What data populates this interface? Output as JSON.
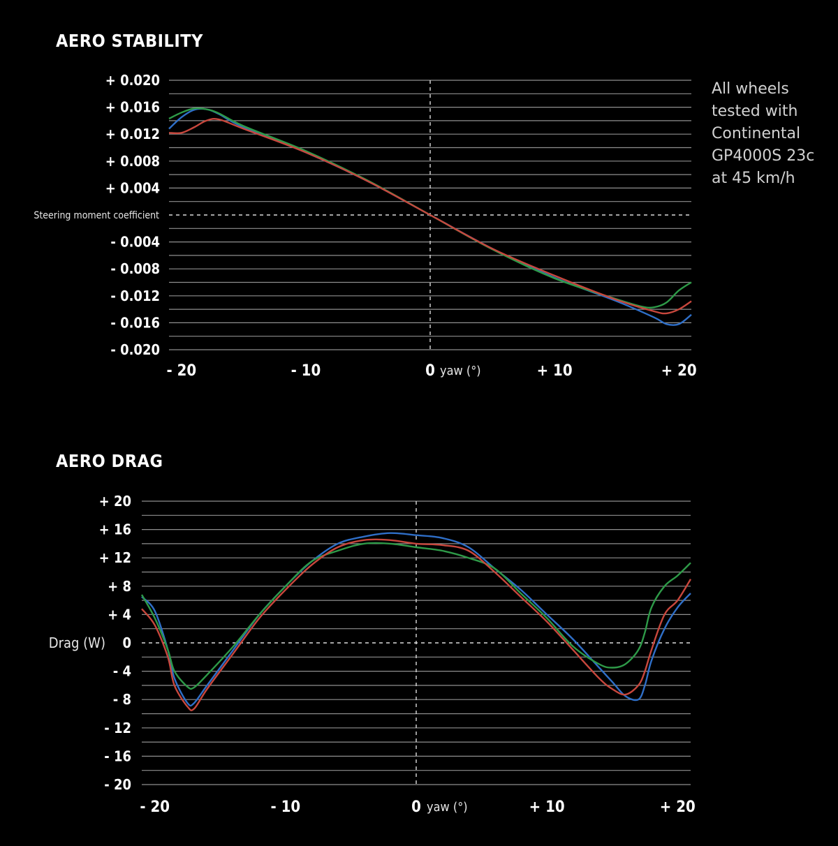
{
  "chart_data": [
    {
      "type": "line",
      "title": "AERO STABILITY",
      "ylabel": "Steering moment coefficient",
      "xlabel": "yaw (°)",
      "xlim": [
        -21,
        21
      ],
      "ylim": [
        -0.02,
        0.02
      ],
      "x_ticks": [
        {
          "value": -20,
          "label": "- 20"
        },
        {
          "value": -10,
          "label": "- 10"
        },
        {
          "value": 0,
          "label": "0"
        },
        {
          "value": 10,
          "label": "+ 10"
        },
        {
          "value": 20,
          "label": "+ 20"
        }
      ],
      "y_ticks": [
        {
          "value": 0.02,
          "label": "+ 0.020"
        },
        {
          "value": 0.016,
          "label": "+ 0.016"
        },
        {
          "value": 0.012,
          "label": "+ 0.012"
        },
        {
          "value": 0.008,
          "label": "+ 0.008"
        },
        {
          "value": 0.004,
          "label": "+ 0.004"
        },
        {
          "value": -0.004,
          "label": "- 0.004"
        },
        {
          "value": -0.008,
          "label": "- 0.008"
        },
        {
          "value": -0.012,
          "label": "- 0.012"
        },
        {
          "value": -0.016,
          "label": "- 0.016"
        },
        {
          "value": -0.02,
          "label": "- 0.020"
        }
      ],
      "grid": true,
      "series": [
        {
          "color": "#2f6fc8",
          "points": [
            [
              -21,
              0.0128
            ],
            [
              -20,
              0.0145
            ],
            [
              -19,
              0.0156
            ],
            [
              -18,
              0.0157
            ],
            [
              -17,
              0.015
            ],
            [
              -15,
              0.013
            ],
            [
              -10,
              0.0093
            ],
            [
              -5,
              0.005
            ],
            [
              0,
              0.0
            ],
            [
              5,
              -0.005
            ],
            [
              10,
              -0.0093
            ],
            [
              15,
              -0.0128
            ],
            [
              18,
              -0.0152
            ],
            [
              19,
              -0.0162
            ],
            [
              20,
              -0.0162
            ],
            [
              21,
              -0.0148
            ]
          ]
        },
        {
          "color": "#2e9a48",
          "points": [
            [
              -21,
              0.0143
            ],
            [
              -20,
              0.0152
            ],
            [
              -19,
              0.0158
            ],
            [
              -18,
              0.0157
            ],
            [
              -17,
              0.0151
            ],
            [
              -15,
              0.0132
            ],
            [
              -10,
              0.0095
            ],
            [
              -5,
              0.0051
            ],
            [
              0,
              0.0
            ],
            [
              5,
              -0.0051
            ],
            [
              10,
              -0.0094
            ],
            [
              15,
              -0.0125
            ],
            [
              17,
              -0.0136
            ],
            [
              18,
              -0.0137
            ],
            [
              19,
              -0.013
            ],
            [
              20,
              -0.0112
            ],
            [
              21,
              -0.01
            ]
          ]
        },
        {
          "color": "#c8473d",
          "points": [
            [
              -21,
              0.0122
            ],
            [
              -20,
              0.0122
            ],
            [
              -19,
              0.013
            ],
            [
              -18,
              0.014
            ],
            [
              -17,
              0.0142
            ],
            [
              -15,
              0.0128
            ],
            [
              -10,
              0.0093
            ],
            [
              -5,
              0.005
            ],
            [
              0,
              0.0
            ],
            [
              5,
              -0.005
            ],
            [
              10,
              -0.009
            ],
            [
              15,
              -0.0126
            ],
            [
              18,
              -0.0143
            ],
            [
              19,
              -0.0146
            ],
            [
              20,
              -0.014
            ],
            [
              21,
              -0.0128
            ]
          ]
        }
      ]
    },
    {
      "type": "line",
      "title": "AERO DRAG",
      "ylabel": "Drag (W)",
      "xlabel": "yaw (°)",
      "xlim": [
        -21,
        21
      ],
      "ylim": [
        -20,
        20
      ],
      "x_ticks": [
        {
          "value": -20,
          "label": "- 20"
        },
        {
          "value": -10,
          "label": "- 10"
        },
        {
          "value": 0,
          "label": "0"
        },
        {
          "value": 10,
          "label": "+ 10"
        },
        {
          "value": 20,
          "label": "+ 20"
        }
      ],
      "y_ticks": [
        {
          "value": 20,
          "label": "+ 20"
        },
        {
          "value": 16,
          "label": "+ 16"
        },
        {
          "value": 12,
          "label": "+ 12"
        },
        {
          "value": 8,
          "label": "+ 8"
        },
        {
          "value": 4,
          "label": "+ 4"
        },
        {
          "value": 0,
          "label": "0"
        },
        {
          "value": -4,
          "label": "- 4"
        },
        {
          "value": -8,
          "label": "- 8"
        },
        {
          "value": -12,
          "label": "- 12"
        },
        {
          "value": -16,
          "label": "- 16"
        },
        {
          "value": -20,
          "label": "- 20"
        }
      ],
      "grid": true,
      "series": [
        {
          "color": "#2f6fc8",
          "points": [
            [
              -21,
              6.5
            ],
            [
              -20,
              4.5
            ],
            [
              -19,
              -1
            ],
            [
              -18.5,
              -5
            ],
            [
              -17.5,
              -8.5
            ],
            [
              -17,
              -8.5
            ],
            [
              -16,
              -6
            ],
            [
              -14,
              -1
            ],
            [
              -12,
              4
            ],
            [
              -10,
              8
            ],
            [
              -8,
              11.5
            ],
            [
              -6,
              14
            ],
            [
              -4,
              15
            ],
            [
              -2,
              15.5
            ],
            [
              0,
              15.2
            ],
            [
              2,
              14.8
            ],
            [
              4,
              13.5
            ],
            [
              6,
              10.5
            ],
            [
              8,
              7.5
            ],
            [
              10,
              4
            ],
            [
              12,
              0.5
            ],
            [
              14,
              -3.5
            ],
            [
              15,
              -5.5
            ],
            [
              16,
              -7.5
            ],
            [
              17,
              -8
            ],
            [
              17.5,
              -6
            ],
            [
              18,
              -2.5
            ],
            [
              19,
              2
            ],
            [
              20,
              5
            ],
            [
              21,
              7
            ]
          ]
        },
        {
          "color": "#2e9a48",
          "points": [
            [
              -21,
              6.8
            ],
            [
              -20,
              3.5
            ],
            [
              -19,
              -1
            ],
            [
              -18.5,
              -4
            ],
            [
              -17.5,
              -6.2
            ],
            [
              -17,
              -6.3
            ],
            [
              -16,
              -4.5
            ],
            [
              -14,
              -0.5
            ],
            [
              -12,
              4
            ],
            [
              -10,
              8
            ],
            [
              -8,
              11.5
            ],
            [
              -6,
              13
            ],
            [
              -4,
              14
            ],
            [
              -2,
              14
            ],
            [
              0,
              13.5
            ],
            [
              2,
              13
            ],
            [
              4,
              12
            ],
            [
              6,
              10.5
            ],
            [
              8,
              7
            ],
            [
              10,
              3.5
            ],
            [
              12,
              -0.5
            ],
            [
              14,
              -3
            ],
            [
              15,
              -3.5
            ],
            [
              16,
              -3
            ],
            [
              17,
              -1
            ],
            [
              17.5,
              1.5
            ],
            [
              18,
              5
            ],
            [
              19,
              8
            ],
            [
              20,
              9.5
            ],
            [
              21,
              11.3
            ]
          ]
        },
        {
          "color": "#c8473d",
          "points": [
            [
              -21,
              4.8
            ],
            [
              -20,
              2.5
            ],
            [
              -19,
              -2
            ],
            [
              -18.5,
              -6
            ],
            [
              -17.5,
              -9
            ],
            [
              -17,
              -9.3
            ],
            [
              -16,
              -6.5
            ],
            [
              -14,
              -1.5
            ],
            [
              -12,
              3.5
            ],
            [
              -10,
              7.5
            ],
            [
              -8,
              11
            ],
            [
              -6,
              13.5
            ],
            [
              -4,
              14.5
            ],
            [
              -2,
              14.5
            ],
            [
              0,
              14
            ],
            [
              2,
              13.8
            ],
            [
              4,
              13
            ],
            [
              6,
              10
            ],
            [
              8,
              6.5
            ],
            [
              10,
              3
            ],
            [
              12,
              -1
            ],
            [
              14,
              -5
            ],
            [
              15,
              -6.5
            ],
            [
              16,
              -7.3
            ],
            [
              17,
              -6
            ],
            [
              17.5,
              -4
            ],
            [
              18,
              -1
            ],
            [
              19,
              4
            ],
            [
              20,
              6
            ],
            [
              21,
              9
            ]
          ]
        }
      ]
    }
  ],
  "note": [
    "All wheels",
    "tested with",
    "Continental",
    "GP4000S 23c",
    "at 45 km/h"
  ]
}
